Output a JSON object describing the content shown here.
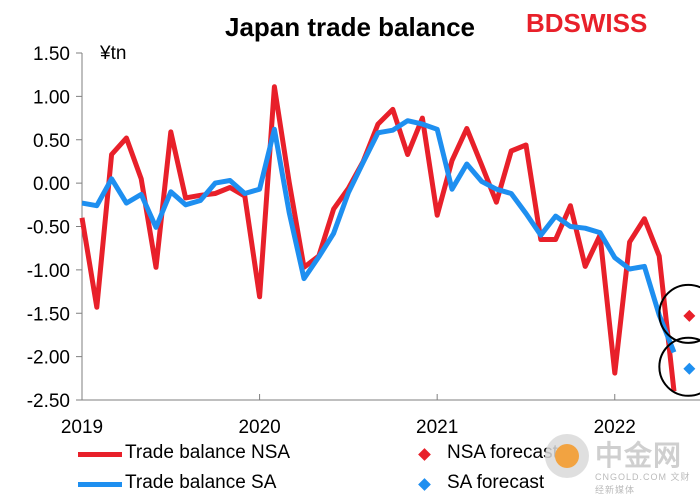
{
  "title": "Japan trade balance",
  "logo": "BDSWISS",
  "unit_label": "¥tn",
  "watermark": {
    "main": "中金网",
    "sub": "CNGOLD.COM  文财经新媒体"
  },
  "colors": {
    "nsa": "#e8202a",
    "sa": "#1e8ff0"
  },
  "chart_data": {
    "type": "line",
    "title": "Japan trade balance",
    "ylabel": "¥tn",
    "ylim": [
      -2.5,
      1.5
    ],
    "yticks": [
      1.5,
      1.0,
      0.5,
      0.0,
      -0.5,
      -1.0,
      -1.5,
      -2.0,
      -2.5
    ],
    "ytick_labels": [
      "1.50",
      "1.00",
      "0.50",
      "0.00",
      "-0.50",
      "-1.00",
      "-1.50",
      "-2.00",
      "-2.50"
    ],
    "xlim": [
      2019.0,
      2022.48
    ],
    "xticks": [
      2019,
      2020,
      2021,
      2022
    ],
    "xtick_labels": [
      "2019",
      "2020",
      "2021",
      "2022"
    ],
    "grid": false,
    "legend_position": "bottom",
    "series": [
      {
        "name": "Trade balance NSA",
        "color": "#e8202a",
        "x_start": 2019.0,
        "x_step": 0.0833333,
        "values": [
          -0.4,
          -1.43,
          0.33,
          0.52,
          0.05,
          -0.97,
          0.59,
          -0.17,
          -0.14,
          -0.12,
          -0.05,
          -0.15,
          -1.31,
          1.11,
          0.01,
          -0.97,
          -0.84,
          -0.3,
          -0.06,
          0.25,
          0.68,
          0.85,
          0.33,
          0.75,
          -0.37,
          0.26,
          0.63,
          0.21,
          -0.22,
          0.37,
          0.44,
          -0.65,
          -0.65,
          -0.26,
          -0.96,
          -0.6,
          -2.19,
          -0.68,
          -0.41,
          -0.84,
          -2.4
        ]
      },
      {
        "name": "Trade balance SA",
        "color": "#1e8ff0",
        "x_start": 2019.0,
        "x_step": 0.0833333,
        "values": [
          -0.23,
          -0.26,
          0.05,
          -0.23,
          -0.13,
          -0.51,
          -0.1,
          -0.25,
          -0.2,
          0.0,
          0.03,
          -0.12,
          -0.07,
          0.62,
          -0.34,
          -1.1,
          -0.85,
          -0.58,
          -0.11,
          0.24,
          0.58,
          0.61,
          0.72,
          0.68,
          0.62,
          -0.07,
          0.22,
          0.02,
          -0.07,
          -0.12,
          -0.35,
          -0.6,
          -0.38,
          -0.5,
          -0.52,
          -0.57,
          -0.86,
          -0.99,
          -0.96,
          -1.52,
          -1.95
        ]
      },
      {
        "name": "NSA forecast",
        "color": "#e8202a",
        "marker": "diamond",
        "x": [
          2022.42
        ],
        "values": [
          -1.53
        ]
      },
      {
        "name": "SA forecast",
        "color": "#1e8ff0",
        "marker": "diamond",
        "x": [
          2022.42
        ],
        "values": [
          -2.14
        ]
      }
    ],
    "legend": [
      "Trade balance NSA",
      "NSA forecast",
      "Trade balance SA",
      "SA forecast"
    ]
  }
}
